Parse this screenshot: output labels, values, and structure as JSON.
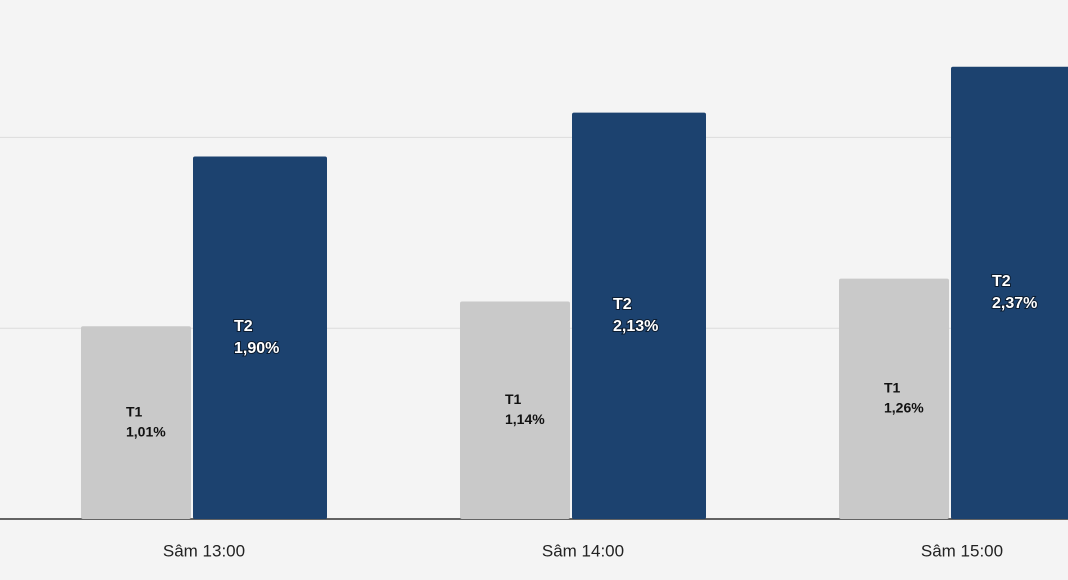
{
  "chart_data": {
    "type": "bar",
    "categories": [
      "Sâm 13:00",
      "Sâm 14:00",
      "Sâm 15:00"
    ],
    "series": [
      {
        "name": "T1",
        "color": "#c9c9c9",
        "values": [
          1.01,
          1.14,
          1.26
        ],
        "value_labels": [
          "1,01%",
          "1,14%",
          "1,26%"
        ]
      },
      {
        "name": "T2",
        "color": "#1c426f",
        "values": [
          1.9,
          2.13,
          2.37
        ],
        "value_labels": [
          "1,90%",
          "2,13%",
          "2,37%"
        ]
      }
    ],
    "ylim": [
      0,
      2.72
    ],
    "yticks": [
      0,
      1,
      2
    ],
    "grid": true
  }
}
